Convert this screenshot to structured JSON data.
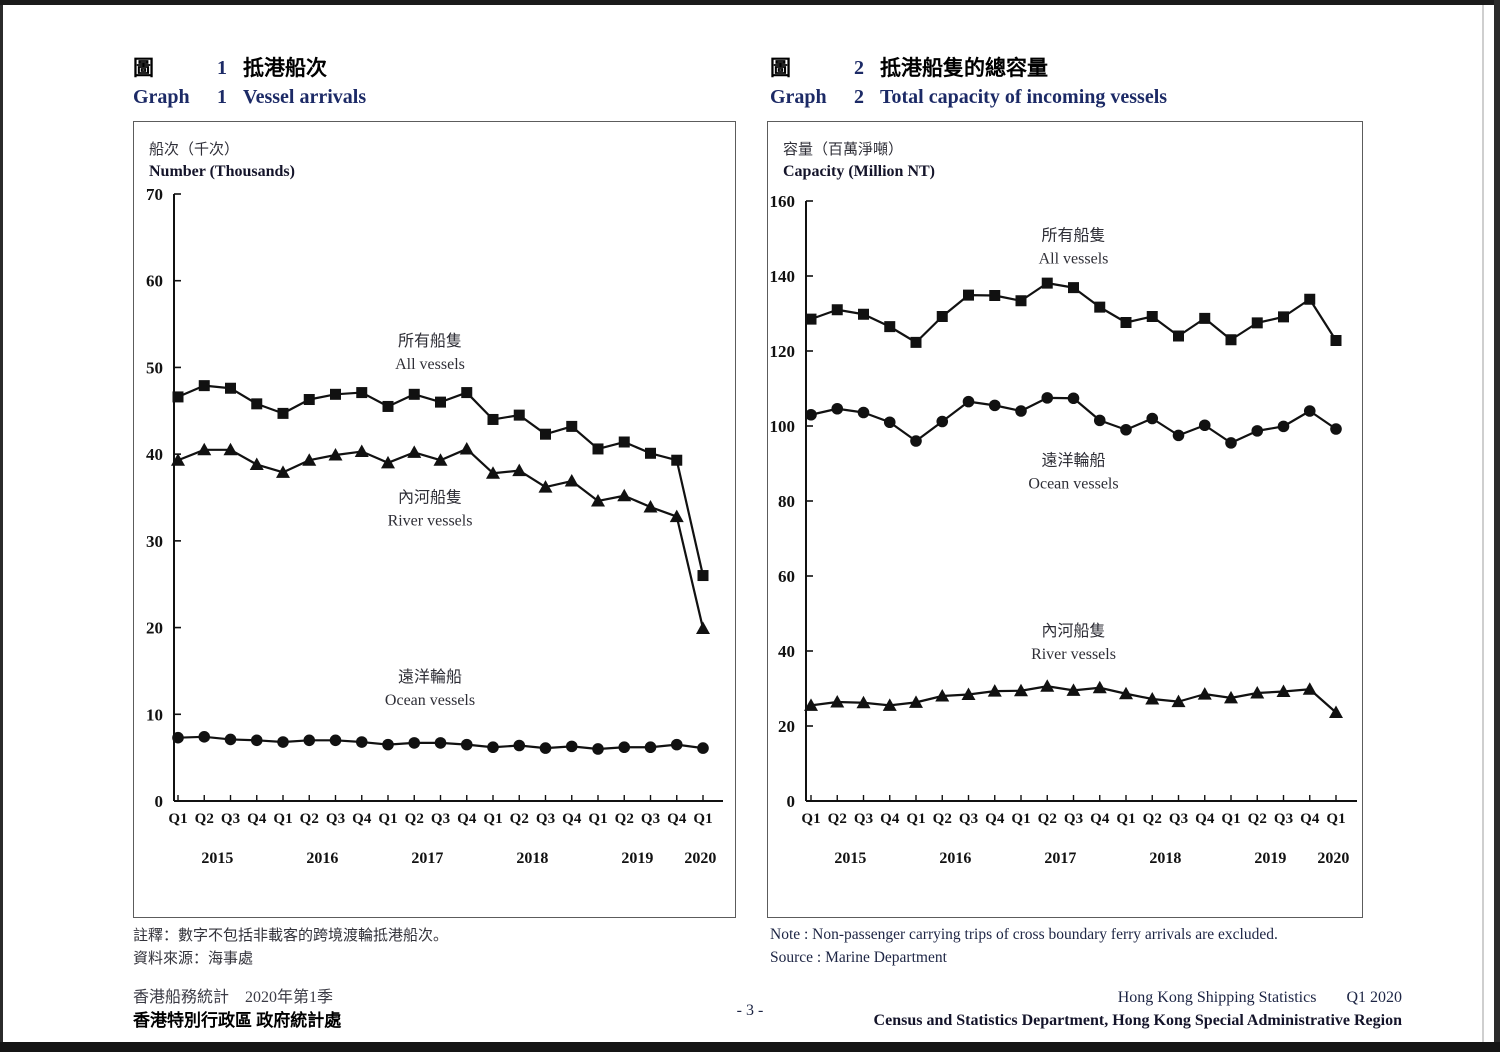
{
  "page": {
    "footer": {
      "left_line1": "香港船務統計　2020年第1季",
      "left_line2": "香港特別行政區 政府統計處",
      "page_number": "- 3 -",
      "right_line1_title": "Hong Kong Shipping Statistics",
      "right_line1_issue": "Q1 2020",
      "right_line2": "Census and Statistics Department, Hong Kong Special Administrative Region"
    },
    "colors": {
      "ink": "#111111",
      "title_en": "#1c2a66",
      "cjk_black": "#000000"
    }
  },
  "graph1": {
    "fig_label_zh": "圖",
    "number": "1",
    "title_zh": "抵港船次",
    "fig_label_en": "Graph",
    "title_en": "Vessel arrivals",
    "unit_zh": "船次（千次）",
    "unit_en": "Number (Thousands)",
    "notes": [
      "註釋：數字不包括非載客的跨境渡輪抵港船次。",
      "資料來源：海事處"
    ]
  },
  "graph2": {
    "fig_label_zh": "圖",
    "number": "2",
    "title_zh": "抵港船隻的總容量",
    "fig_label_en": "Graph",
    "title_en": "Total capacity of incoming vessels",
    "unit_zh": "容量（百萬淨噸）",
    "unit_en": "Capacity (Million NT)",
    "notes": [
      "Note : Non-passenger carrying trips of cross boundary ferry arrivals are excluded.",
      "Source : Marine Department"
    ]
  },
  "chart_data": [
    {
      "type": "line",
      "title": "Graph 1 Vessel arrivals",
      "xlabel": "",
      "ylabel": "Number (Thousands)",
      "ylim": [
        0,
        70
      ],
      "yticks": [
        0,
        10,
        20,
        30,
        40,
        50,
        60,
        70
      ],
      "grid": false,
      "legend_position": "inline-labels",
      "x": [
        "Q1",
        "Q2",
        "Q3",
        "Q4",
        "Q1",
        "Q2",
        "Q3",
        "Q4",
        "Q1",
        "Q2",
        "Q3",
        "Q4",
        "Q1",
        "Q2",
        "Q3",
        "Q4",
        "Q1",
        "Q2",
        "Q3",
        "Q4",
        "Q1"
      ],
      "years": [
        {
          "label": "2015",
          "center_index": 1.5
        },
        {
          "label": "2016",
          "center_index": 5.5
        },
        {
          "label": "2017",
          "center_index": 9.5
        },
        {
          "label": "2018",
          "center_index": 13.5
        },
        {
          "label": "2019",
          "center_index": 17.5
        },
        {
          "label": "2020",
          "center_index": 19.9
        }
      ],
      "series": [
        {
          "name_zh": "所有船隻",
          "name_en": "All vessels",
          "marker": "square",
          "label_pos": {
            "x_index": 9.6,
            "y": 52.5
          },
          "values": [
            46.6,
            47.9,
            47.6,
            45.8,
            44.7,
            46.3,
            46.9,
            47.1,
            45.5,
            46.9,
            46.0,
            47.1,
            44.0,
            44.5,
            42.3,
            43.2,
            40.6,
            41.4,
            40.1,
            39.3,
            26.0
          ]
        },
        {
          "name_zh": "內河船隻",
          "name_en": "River vessels",
          "marker": "triangle",
          "label_pos": {
            "x_index": 9.6,
            "y": 34.4
          },
          "values": [
            39.3,
            40.5,
            40.5,
            38.8,
            37.9,
            39.3,
            39.9,
            40.3,
            39.0,
            40.2,
            39.3,
            40.6,
            37.8,
            38.1,
            36.2,
            36.9,
            34.6,
            35.2,
            33.9,
            32.8,
            19.9
          ]
        },
        {
          "name_zh": "遠洋輪船",
          "name_en": "Ocean vessels",
          "marker": "circle",
          "label_pos": {
            "x_index": 9.6,
            "y": 13.7
          },
          "values": [
            7.3,
            7.4,
            7.1,
            7.0,
            6.8,
            7.0,
            7.0,
            6.8,
            6.5,
            6.7,
            6.7,
            6.5,
            6.2,
            6.4,
            6.1,
            6.3,
            6.0,
            6.2,
            6.2,
            6.5,
            6.1
          ]
        }
      ]
    },
    {
      "type": "line",
      "title": "Graph 2 Total capacity of incoming vessels",
      "xlabel": "",
      "ylabel": "Capacity (Million NT)",
      "ylim": [
        0,
        160
      ],
      "yticks": [
        0,
        20,
        40,
        60,
        80,
        100,
        120,
        140,
        160
      ],
      "grid": false,
      "legend_position": "inline-labels",
      "x": [
        "Q1",
        "Q2",
        "Q3",
        "Q4",
        "Q1",
        "Q2",
        "Q3",
        "Q4",
        "Q1",
        "Q2",
        "Q3",
        "Q4",
        "Q1",
        "Q2",
        "Q3",
        "Q4",
        "Q1",
        "Q2",
        "Q3",
        "Q4",
        "Q1"
      ],
      "years": [
        {
          "label": "2015",
          "center_index": 1.5
        },
        {
          "label": "2016",
          "center_index": 5.5
        },
        {
          "label": "2017",
          "center_index": 9.5
        },
        {
          "label": "2018",
          "center_index": 13.5
        },
        {
          "label": "2019",
          "center_index": 17.5
        },
        {
          "label": "2020",
          "center_index": 19.9
        }
      ],
      "series": [
        {
          "name_zh": "所有船隻",
          "name_en": "All vessels",
          "marker": "square",
          "label_pos": {
            "x_index": 10.0,
            "y": 149.5
          },
          "values": [
            128.5,
            131.0,
            129.8,
            126.5,
            122.3,
            129.2,
            134.9,
            134.8,
            133.4,
            138.1,
            136.9,
            131.7,
            127.6,
            129.2,
            124.0,
            128.7,
            123.0,
            127.5,
            129.1,
            133.8,
            122.8
          ]
        },
        {
          "name_zh": "遠洋輪船",
          "name_en": "Ocean vessels",
          "marker": "circle",
          "label_pos": {
            "x_index": 10.0,
            "y": 89.5
          },
          "values": [
            103.0,
            104.6,
            103.6,
            101.0,
            96.0,
            101.2,
            106.5,
            105.5,
            104.0,
            107.5,
            107.4,
            101.5,
            99.0,
            102.0,
            97.5,
            100.2,
            95.5,
            98.7,
            99.9,
            104.0,
            99.2
          ]
        },
        {
          "name_zh": "內河船隻",
          "name_en": "River vessels",
          "marker": "triangle",
          "label_pos": {
            "x_index": 10.0,
            "y": 44.0
          },
          "values": [
            25.5,
            26.4,
            26.2,
            25.5,
            26.3,
            28.0,
            28.4,
            29.3,
            29.4,
            30.6,
            29.5,
            30.2,
            28.6,
            27.2,
            26.5,
            28.5,
            27.5,
            28.8,
            29.2,
            29.8,
            23.6
          ]
        }
      ]
    }
  ]
}
